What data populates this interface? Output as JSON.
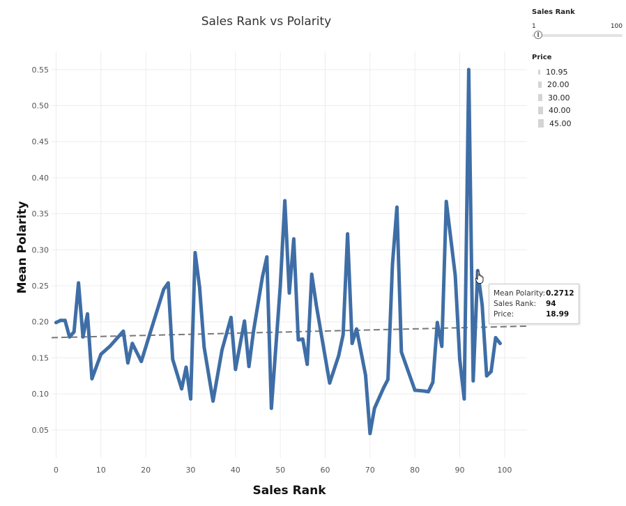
{
  "chart_data": {
    "type": "line",
    "title": "Sales Rank vs Polarity",
    "xlabel": "Sales Rank",
    "ylabel": "Mean Polarity",
    "xlim": [
      -1,
      105
    ],
    "ylim": [
      0.015,
      0.575
    ],
    "x_ticks": [
      0,
      10,
      20,
      30,
      40,
      50,
      60,
      70,
      80,
      90,
      100
    ],
    "y_ticks": [
      0.05,
      0.1,
      0.15,
      0.2,
      0.25,
      0.3,
      0.35,
      0.4,
      0.45,
      0.5,
      0.55
    ],
    "grid": true,
    "series": [
      {
        "color": "#3f6ea6",
        "x": [
          0,
          1,
          2,
          3,
          4,
          5,
          6,
          7,
          8,
          10,
          12,
          15,
          16,
          17,
          19,
          21,
          24,
          25,
          26,
          28,
          29,
          30,
          31,
          32,
          33,
          35,
          37,
          39,
          40,
          42,
          43,
          44,
          46,
          47,
          48,
          50,
          51,
          52,
          53,
          54,
          55,
          56,
          57,
          58,
          61,
          63,
          64,
          65,
          66,
          67,
          69,
          70,
          71,
          73,
          74,
          75,
          76,
          77,
          80,
          82,
          83,
          84,
          85,
          86,
          87,
          89,
          90,
          91,
          92,
          93,
          94,
          95,
          96,
          97,
          98,
          99
        ],
        "y": [
          0.199,
          0.202,
          0.202,
          0.179,
          0.186,
          0.254,
          0.179,
          0.211,
          0.121,
          0.155,
          0.166,
          0.187,
          0.143,
          0.17,
          0.145,
          0.185,
          0.245,
          0.254,
          0.148,
          0.107,
          0.137,
          0.093,
          0.296,
          0.248,
          0.165,
          0.09,
          0.161,
          0.206,
          0.134,
          0.201,
          0.138,
          0.186,
          0.262,
          0.29,
          0.08,
          0.25,
          0.368,
          0.24,
          0.315,
          0.175,
          0.176,
          0.141,
          0.266,
          0.224,
          0.115,
          0.153,
          0.182,
          0.322,
          0.17,
          0.19,
          0.126,
          0.045,
          0.08,
          0.108,
          0.12,
          0.28,
          0.359,
          0.158,
          0.105,
          0.104,
          0.103,
          0.116,
          0.199,
          0.166,
          0.367,
          0.264,
          0.148,
          0.093,
          0.55,
          0.118,
          0.271,
          0.223,
          0.125,
          0.131,
          0.178,
          0.17
        ]
      }
    ],
    "trend_line": {
      "x": [
        -1,
        105
      ],
      "y": [
        0.178,
        0.194
      ]
    }
  },
  "filters": {
    "sales_rank": {
      "title": "Sales Rank",
      "min_label": "1",
      "max_label": "100"
    },
    "price": {
      "title": "Price",
      "items": [
        "10.95",
        "20.00",
        "30.00",
        "40.00",
        "45.00"
      ],
      "swatch_sizes": [
        3,
        5,
        6,
        7,
        8
      ]
    }
  },
  "tooltip": {
    "rows": [
      {
        "key": "Mean Polarity:",
        "value": "0.2712"
      },
      {
        "key": "Sales Rank:",
        "value": "94"
      },
      {
        "key": "Price:",
        "value": "18.99"
      }
    ]
  }
}
